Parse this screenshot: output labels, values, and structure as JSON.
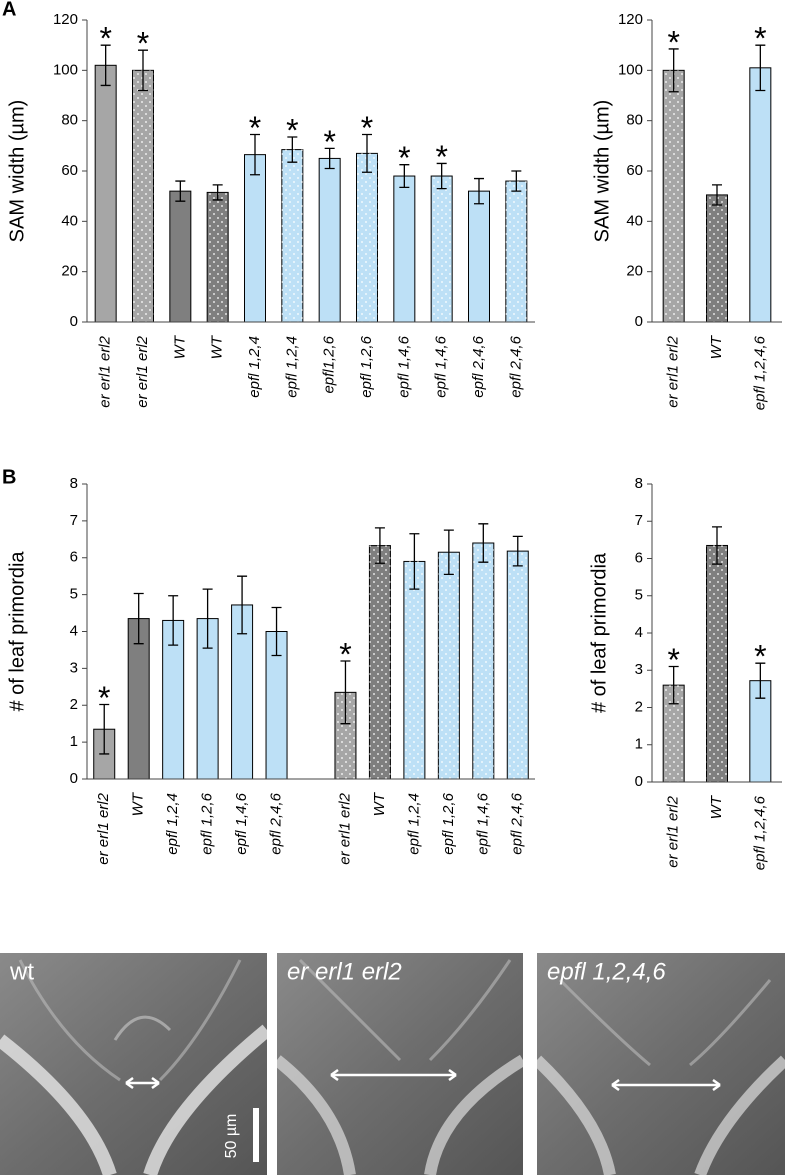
{
  "panel_labels": [
    "A",
    "B"
  ],
  "chart_data": [
    {
      "type": "bar",
      "ylabel": "SAM width (µm)",
      "categories": [
        "er erl1 erl2",
        "er erl1 erl2",
        "WT",
        "WT",
        "epfl 1,2,4",
        "epfl 1,2,4",
        "epfl1,2,6",
        "epfl 1,2,6",
        "epfl 1,4,6",
        "epfl 1,4,6",
        "epfl 2,4,6",
        "epfl 2,4,6"
      ],
      "values": [
        102,
        100,
        52,
        51.5,
        66.5,
        68.5,
        65,
        67,
        58,
        58,
        52,
        56
      ],
      "errors": [
        8,
        8,
        4,
        3,
        8,
        5,
        4,
        7.5,
        4.5,
        5,
        5,
        4
      ],
      "colors": [
        "#a6a6a6",
        "#a6a6a6",
        "#7f7f7f",
        "#7f7f7f",
        "#bde0f6",
        "#bde0f6",
        "#bde0f6",
        "#bde0f6",
        "#bde0f6",
        "#bde0f6",
        "#bde0f6",
        "#bde0f6"
      ],
      "dotted": [
        false,
        true,
        false,
        true,
        false,
        true,
        false,
        true,
        false,
        true,
        false,
        true
      ],
      "significant": [
        true,
        true,
        false,
        false,
        true,
        true,
        true,
        true,
        true,
        true,
        false,
        false
      ],
      "star": "*",
      "ylim": [
        0,
        120
      ],
      "yticks": [
        0,
        20,
        40,
        60,
        80,
        100,
        120
      ]
    },
    {
      "type": "bar",
      "ylabel": "SAM width (µm)",
      "categories": [
        "er erl1 erl2",
        "WT",
        "epfl 1,2,4,6"
      ],
      "values": [
        100,
        50.5,
        101
      ],
      "errors": [
        8.5,
        4,
        9
      ],
      "colors": [
        "#a6a6a6",
        "#7f7f7f",
        "#bde0f6"
      ],
      "dotted": [
        true,
        true,
        false
      ],
      "significant": [
        true,
        false,
        true
      ],
      "star": "*",
      "ylim": [
        0,
        120
      ],
      "yticks": [
        0,
        20,
        40,
        60,
        80,
        100,
        120
      ]
    },
    {
      "type": "bar",
      "ylabel": "# of leaf primordia",
      "categories": [
        "er erl1 erl2",
        "WT",
        "epfl 1,2,4",
        "epfl 1,2,6",
        "epfl 1,4,6",
        "epfl 2,4,6",
        null,
        "er erl1 erl2",
        "WT",
        "epfl 1,2,4",
        "epfl 1,2,6",
        "epfl 1,4,6",
        "epfl 2,4,6"
      ],
      "values": [
        1.35,
        4.35,
        4.3,
        4.35,
        4.72,
        4.0,
        null,
        2.35,
        6.33,
        5.9,
        6.15,
        6.4,
        6.18
      ],
      "errors": [
        0.67,
        0.68,
        0.67,
        0.8,
        0.78,
        0.65,
        null,
        0.85,
        0.48,
        0.75,
        0.6,
        0.52,
        0.4
      ],
      "colors": [
        "#a6a6a6",
        "#7f7f7f",
        "#bde0f6",
        "#bde0f6",
        "#bde0f6",
        "#bde0f6",
        null,
        "#a6a6a6",
        "#7f7f7f",
        "#bde0f6",
        "#bde0f6",
        "#bde0f6",
        "#bde0f6"
      ],
      "dotted": [
        false,
        false,
        false,
        false,
        false,
        false,
        null,
        true,
        true,
        true,
        true,
        true,
        true
      ],
      "significant": [
        true,
        false,
        false,
        false,
        false,
        false,
        null,
        true,
        false,
        false,
        false,
        false,
        false
      ],
      "star": "*",
      "ylim": [
        0,
        8
      ],
      "yticks": [
        0,
        1,
        2,
        3,
        4,
        5,
        6,
        7,
        8
      ]
    },
    {
      "type": "bar",
      "ylabel": "# of leaf primordia",
      "categories": [
        "er erl1 erl2",
        "WT",
        "epfl 1,2,4,6"
      ],
      "values": [
        2.6,
        6.35,
        2.72
      ],
      "errors": [
        0.5,
        0.5,
        0.47
      ],
      "colors": [
        "#a6a6a6",
        "#7f7f7f",
        "#bde0f6"
      ],
      "dotted": [
        true,
        true,
        false
      ],
      "significant": [
        true,
        false,
        true
      ],
      "star": "*",
      "ylim": [
        0,
        8
      ],
      "yticks": [
        0,
        1,
        2,
        3,
        4,
        5,
        6,
        7,
        8
      ]
    }
  ],
  "micrographs": [
    {
      "label": "wt"
    },
    {
      "label": "er erl1 erl2"
    },
    {
      "label": "epfl 1,2,4,6"
    }
  ],
  "scale_bar": "50 µm"
}
